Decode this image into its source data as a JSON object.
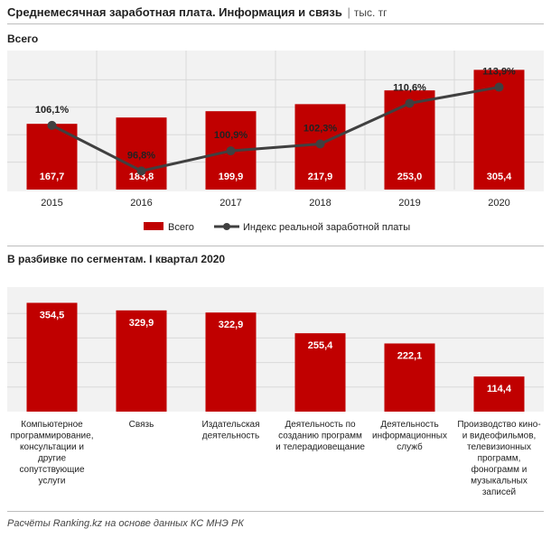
{
  "header": {
    "title": "Среднемесячная заработная плата. Информация и связь",
    "separator": "|",
    "unit": "тыс. тг"
  },
  "colors": {
    "bar": "#c00000",
    "line": "#404040",
    "grid": "#d9d9d9",
    "panel": "#f2f2f2"
  },
  "chart_data": [
    {
      "type": "bar",
      "title": "Всего",
      "categories": [
        "2015",
        "2016",
        "2017",
        "2018",
        "2019",
        "2020"
      ],
      "series": [
        {
          "name": "Всего",
          "values": [
            167.7,
            183.8,
            199.9,
            217.9,
            253.0,
            305.4
          ],
          "labels": [
            "167,7",
            "183,8",
            "199,9",
            "217,9",
            "253,0",
            "305,4"
          ]
        },
        {
          "name": "Индекс реальной заработной платы",
          "type": "line",
          "values": [
            106.1,
            96.8,
            100.9,
            102.3,
            110.6,
            113.9
          ],
          "labels": [
            "106,1%",
            "96,8%",
            "100,9%",
            "102,3%",
            "110,6%",
            "113,9%"
          ]
        }
      ],
      "legend": "bottom-center",
      "grid": true
    },
    {
      "type": "bar",
      "title": "В разбивке по сегментам. I квартал 2020",
      "categories": [
        "Компьютерное программирование, консультации и другие сопутствующие услуги",
        "Связь",
        "Издательская деятельность",
        "Деятельность по созданию программ и телерадиовещание",
        "Деятельность информационных служб",
        "Производство кино- и видеофильмов, телевизионных программ, фонограмм и музыкальных записей"
      ],
      "category_lines": [
        [
          "Компьютерное",
          "программирование,",
          "консультации и",
          "другие",
          "сопутствующие",
          "услуги"
        ],
        [
          "Связь"
        ],
        [
          "Издательская",
          "деятельность"
        ],
        [
          "Деятельность по",
          "созданию программ",
          "и телерадиовещание"
        ],
        [
          "Деятельность",
          "информационных",
          "служб"
        ],
        [
          "Производство кино-",
          "и видеофильмов,",
          "телевизионных",
          "программ,",
          "фонограмм и",
          "музыкальных",
          "записей"
        ]
      ],
      "values": [
        354.5,
        329.9,
        322.9,
        255.4,
        222.1,
        114.4
      ],
      "labels": [
        "354,5",
        "329,9",
        "322,9",
        "255,4",
        "222,1",
        "114,4"
      ],
      "grid": true
    }
  ],
  "source": "Расчёты Ranking.kz на основе данных КС МНЭ РК"
}
